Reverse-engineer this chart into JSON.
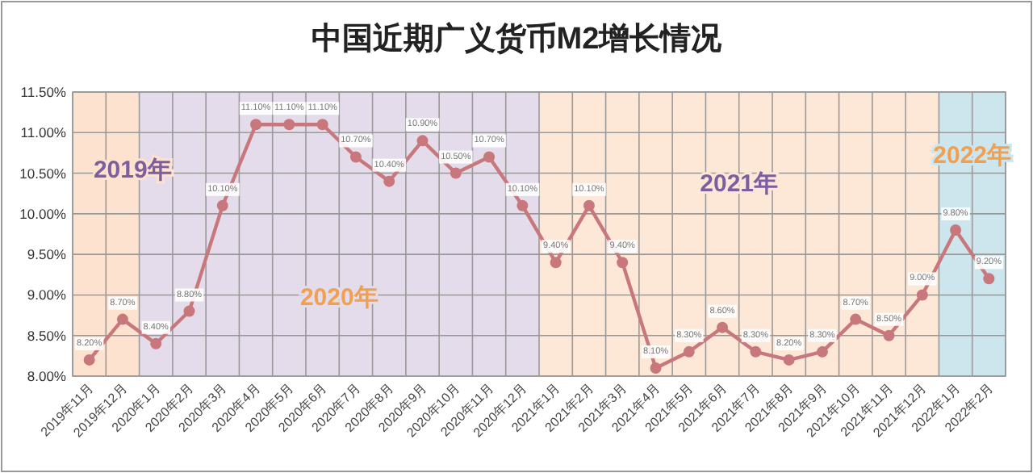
{
  "chart_data": {
    "type": "line",
    "title": "中国近期广义货币M2增长情况",
    "categories": [
      "2019年11月",
      "2019年12月",
      "2020年1月",
      "2020年2月",
      "2020年3月",
      "2020年4月",
      "2020年5月",
      "2020年6月",
      "2020年7月",
      "2020年8月",
      "2020年9月",
      "2020年10月",
      "2020年11月",
      "2020年12月",
      "2021年1月",
      "2021年2月",
      "2021年3月",
      "2021年4月",
      "2021年5月",
      "2021年6月",
      "2021年7月",
      "2021年8月",
      "2021年9月",
      "2021年10月",
      "2021年11月",
      "2021年12月",
      "2022年1月",
      "2022年2月"
    ],
    "series": [
      {
        "color": "#c8787c",
        "values": [
          8.2,
          8.7,
          8.4,
          8.8,
          10.1,
          11.1,
          11.1,
          11.1,
          10.7,
          10.4,
          10.9,
          10.5,
          10.7,
          10.1,
          9.4,
          10.1,
          9.4,
          8.1,
          8.3,
          8.6,
          8.3,
          8.2,
          8.3,
          8.7,
          8.5,
          9.0,
          9.8,
          9.2
        ],
        "value_labels": [
          "8.20%",
          "8.70%",
          "8.40%",
          "8.80%",
          "10.10%",
          "11.10%",
          "11.10%",
          "11.10%",
          "10.70%",
          "10.40%",
          "10.90%",
          "10.50%",
          "10.70%",
          "10.10%",
          "9.40%",
          "10.10%",
          "9.40%",
          "8.10%",
          "8.30%",
          "8.60%",
          "8.30%",
          "8.20%",
          "8.30%",
          "8.70%",
          "8.50%",
          "9.00%",
          "9.80%",
          "9.20%"
        ]
      }
    ],
    "ylim": [
      8,
      11.5
    ],
    "yticks": [
      {
        "value": 8,
        "label": "8.00%"
      },
      {
        "value": 8.5,
        "label": "8.50%"
      },
      {
        "value": 9,
        "label": "9.00%"
      },
      {
        "value": 9.5,
        "label": "9.50%"
      },
      {
        "value": 10,
        "label": "10.00%"
      },
      {
        "value": 10.5,
        "label": "10.50%"
      },
      {
        "value": 11,
        "label": "11.00%"
      },
      {
        "value": 11.5,
        "label": "11.50%"
      }
    ],
    "grid": true,
    "marker": "circle",
    "line_style": "solid",
    "bands": [
      {
        "axis": "x",
        "from": "2019年11月",
        "to": "2019年12月",
        "label": "2019年",
        "color": "#fde3cf"
      },
      {
        "axis": "x",
        "from": "2020年1月",
        "to": "2020年12月",
        "label": "2020年",
        "color": "#e4dcea"
      },
      {
        "axis": "x",
        "from": "2021年1月",
        "to": "2021年12月",
        "label": "2021年",
        "color": "#fde8d8"
      },
      {
        "axis": "x",
        "from": "2022年1月",
        "to": "2022年2月",
        "label": "2022年",
        "color": "#cde6ee"
      }
    ]
  }
}
